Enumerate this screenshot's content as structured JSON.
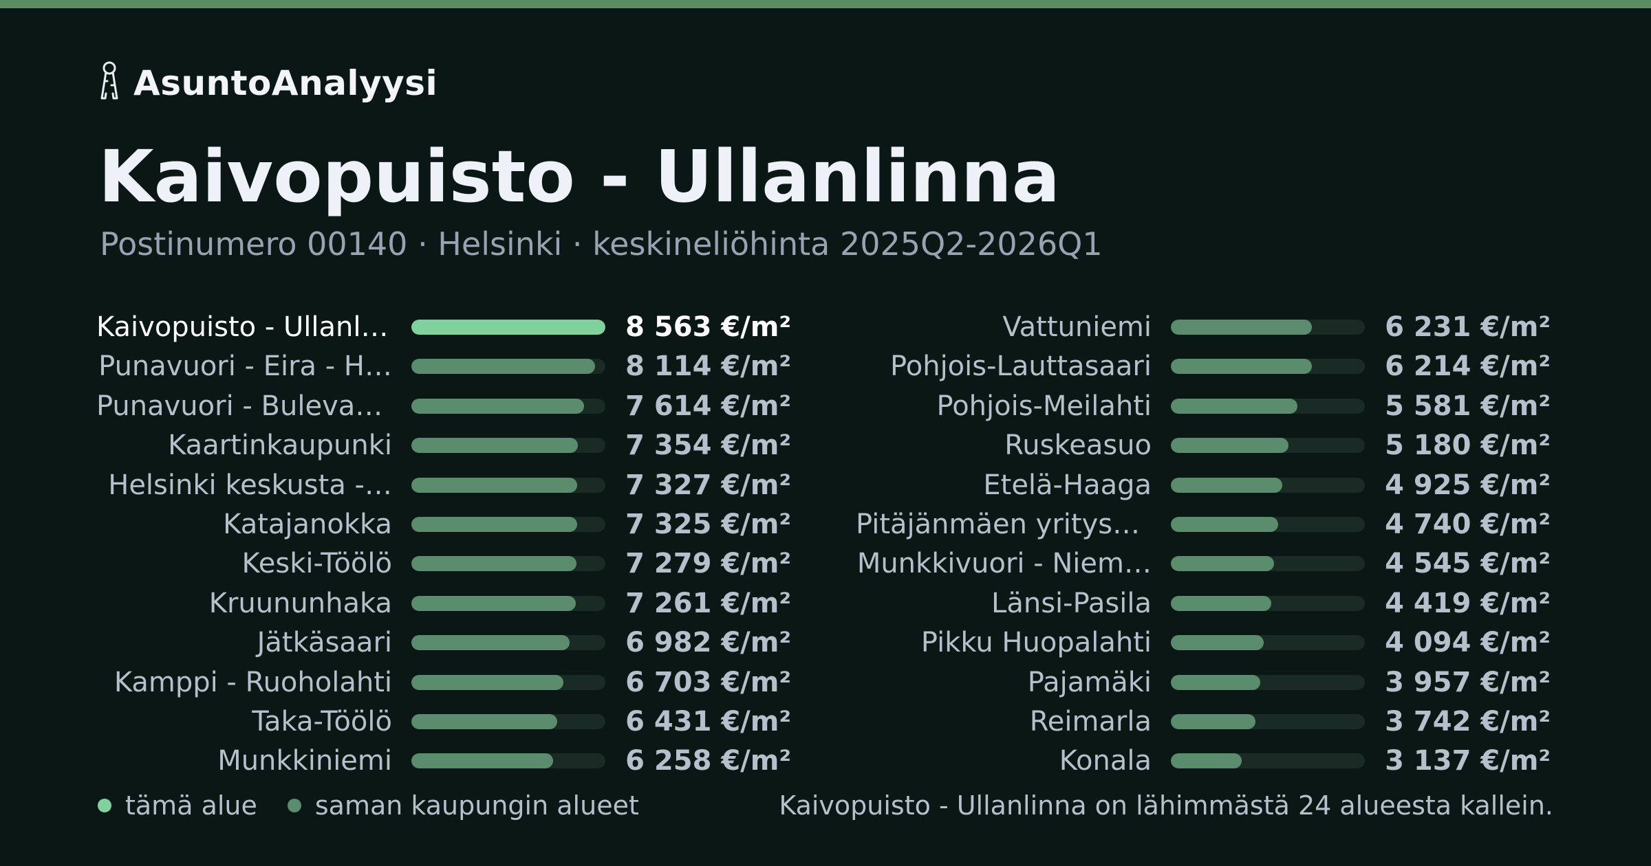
{
  "brand": {
    "name": "AsuntoAnalyysi",
    "icon": "keys-icon"
  },
  "header": {
    "title": "Kaivopuisto - Ullanlinna",
    "subtitle": "Postinumero 00140 · Helsinki · keskineliöhinta 2025Q2-2026Q1"
  },
  "colors": {
    "background": "#0b1714",
    "accent": "#5b8c63",
    "current_bar": "#7fd29c",
    "other_bar": "#5b8c6e",
    "track": "#1a2a25"
  },
  "chart_data": {
    "type": "bar",
    "orientation": "horizontal",
    "xlim": [
      0,
      8563
    ],
    "unit": "€/m²",
    "categories": [
      "Kaivopuisto - Ullanli…",
      "Punavuori - Eira - H…",
      "Punavuori - Bulevar…",
      "Kaartinkaupunki",
      "Helsinki keskusta -…",
      "Katajanokka",
      "Keski-Töölö",
      "Kruununhaka",
      "Jätkäsaari",
      "Kamppi - Ruoholahti",
      "Taka-Töölö",
      "Munkkiniemi",
      "Vattuniemi",
      "Pohjois-Lauttasaari",
      "Pohjois-Meilahti",
      "Ruskeasuo",
      "Etelä-Haaga",
      "Pitäjänmäen yritysa…",
      "Munkkivuori - Niem…",
      "Länsi-Pasila",
      "Pikku Huopalahti",
      "Pajamäki",
      "Reimarla",
      "Konala"
    ],
    "values": [
      8563,
      8114,
      7614,
      7354,
      7327,
      7325,
      7279,
      7261,
      6982,
      6703,
      6431,
      6258,
      6231,
      6214,
      5581,
      5180,
      4925,
      4740,
      4545,
      4419,
      4094,
      3957,
      3742,
      3137
    ],
    "value_labels": [
      "8 563 €/m²",
      "8 114 €/m²",
      "7 614 €/m²",
      "7 354 €/m²",
      "7 327 €/m²",
      "7 325 €/m²",
      "7 279 €/m²",
      "7 261 €/m²",
      "6 982 €/m²",
      "6 703 €/m²",
      "6 431 €/m²",
      "6 258 €/m²",
      "6 231 €/m²",
      "6 214 €/m²",
      "5 581 €/m²",
      "5 180 €/m²",
      "4 925 €/m²",
      "4 740 €/m²",
      "4 545 €/m²",
      "4 419 €/m²",
      "4 094 €/m²",
      "3 957 €/m²",
      "3 742 €/m²",
      "3 137 €/m²"
    ],
    "highlight_index": 0,
    "legend": [
      {
        "label": "tämä alue",
        "color": "#7fd29c"
      },
      {
        "label": "saman kaupungin alueet",
        "color": "#5b8c6e"
      }
    ],
    "legend_position": "bottom-left"
  },
  "footer": {
    "note": "Kaivopuisto - Ullanlinna on lähimmästä 24 alueesta kallein."
  }
}
